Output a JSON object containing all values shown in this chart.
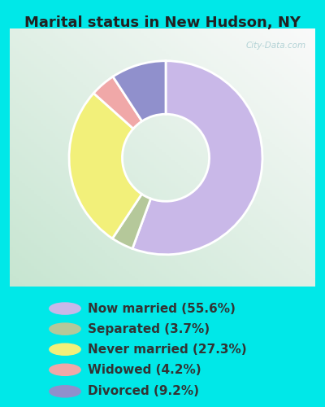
{
  "title": "Marital status in New Hudson, NY",
  "slices": [
    55.6,
    3.7,
    27.3,
    4.2,
    9.2
  ],
  "labels": [
    "Now married (55.6%)",
    "Separated (3.7%)",
    "Never married (27.3%)",
    "Widowed (4.2%)",
    "Divorced (9.2%)"
  ],
  "colors": [
    "#c9b8e8",
    "#b5c89a",
    "#f2f07a",
    "#f0a8a8",
    "#9090cc"
  ],
  "bg_cyan": "#00e8e8",
  "chart_area_color": "#d8f0e0",
  "title_fontsize": 13,
  "legend_fontsize": 11,
  "watermark": "City-Data.com",
  "donut_width": 0.55,
  "startangle": 90,
  "pie_order": [
    0,
    1,
    2,
    3,
    4
  ]
}
